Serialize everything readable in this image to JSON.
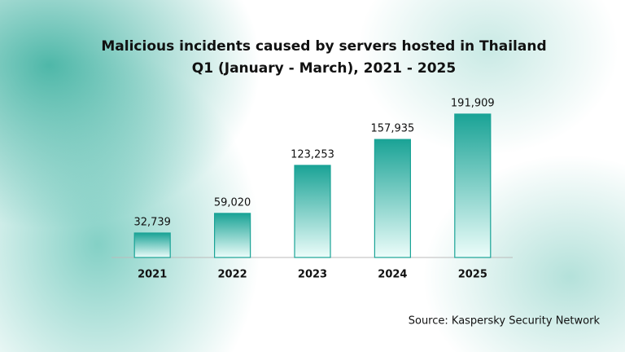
{
  "chart_data": {
    "type": "bar",
    "title": "Malicious incidents caused by servers hosted in Thailand",
    "subtitle": "Q1 (January - March), 2021 - 2025",
    "categories": [
      "2021",
      "2022",
      "2023",
      "2024",
      "2025"
    ],
    "values": [
      32739,
      59020,
      123253,
      157935,
      191909
    ],
    "value_labels": [
      "32,739",
      "59,020",
      "123,253",
      "157,935",
      "191,909"
    ],
    "color": "#1aa396",
    "source": "Source: Kaspersky Security Network"
  }
}
